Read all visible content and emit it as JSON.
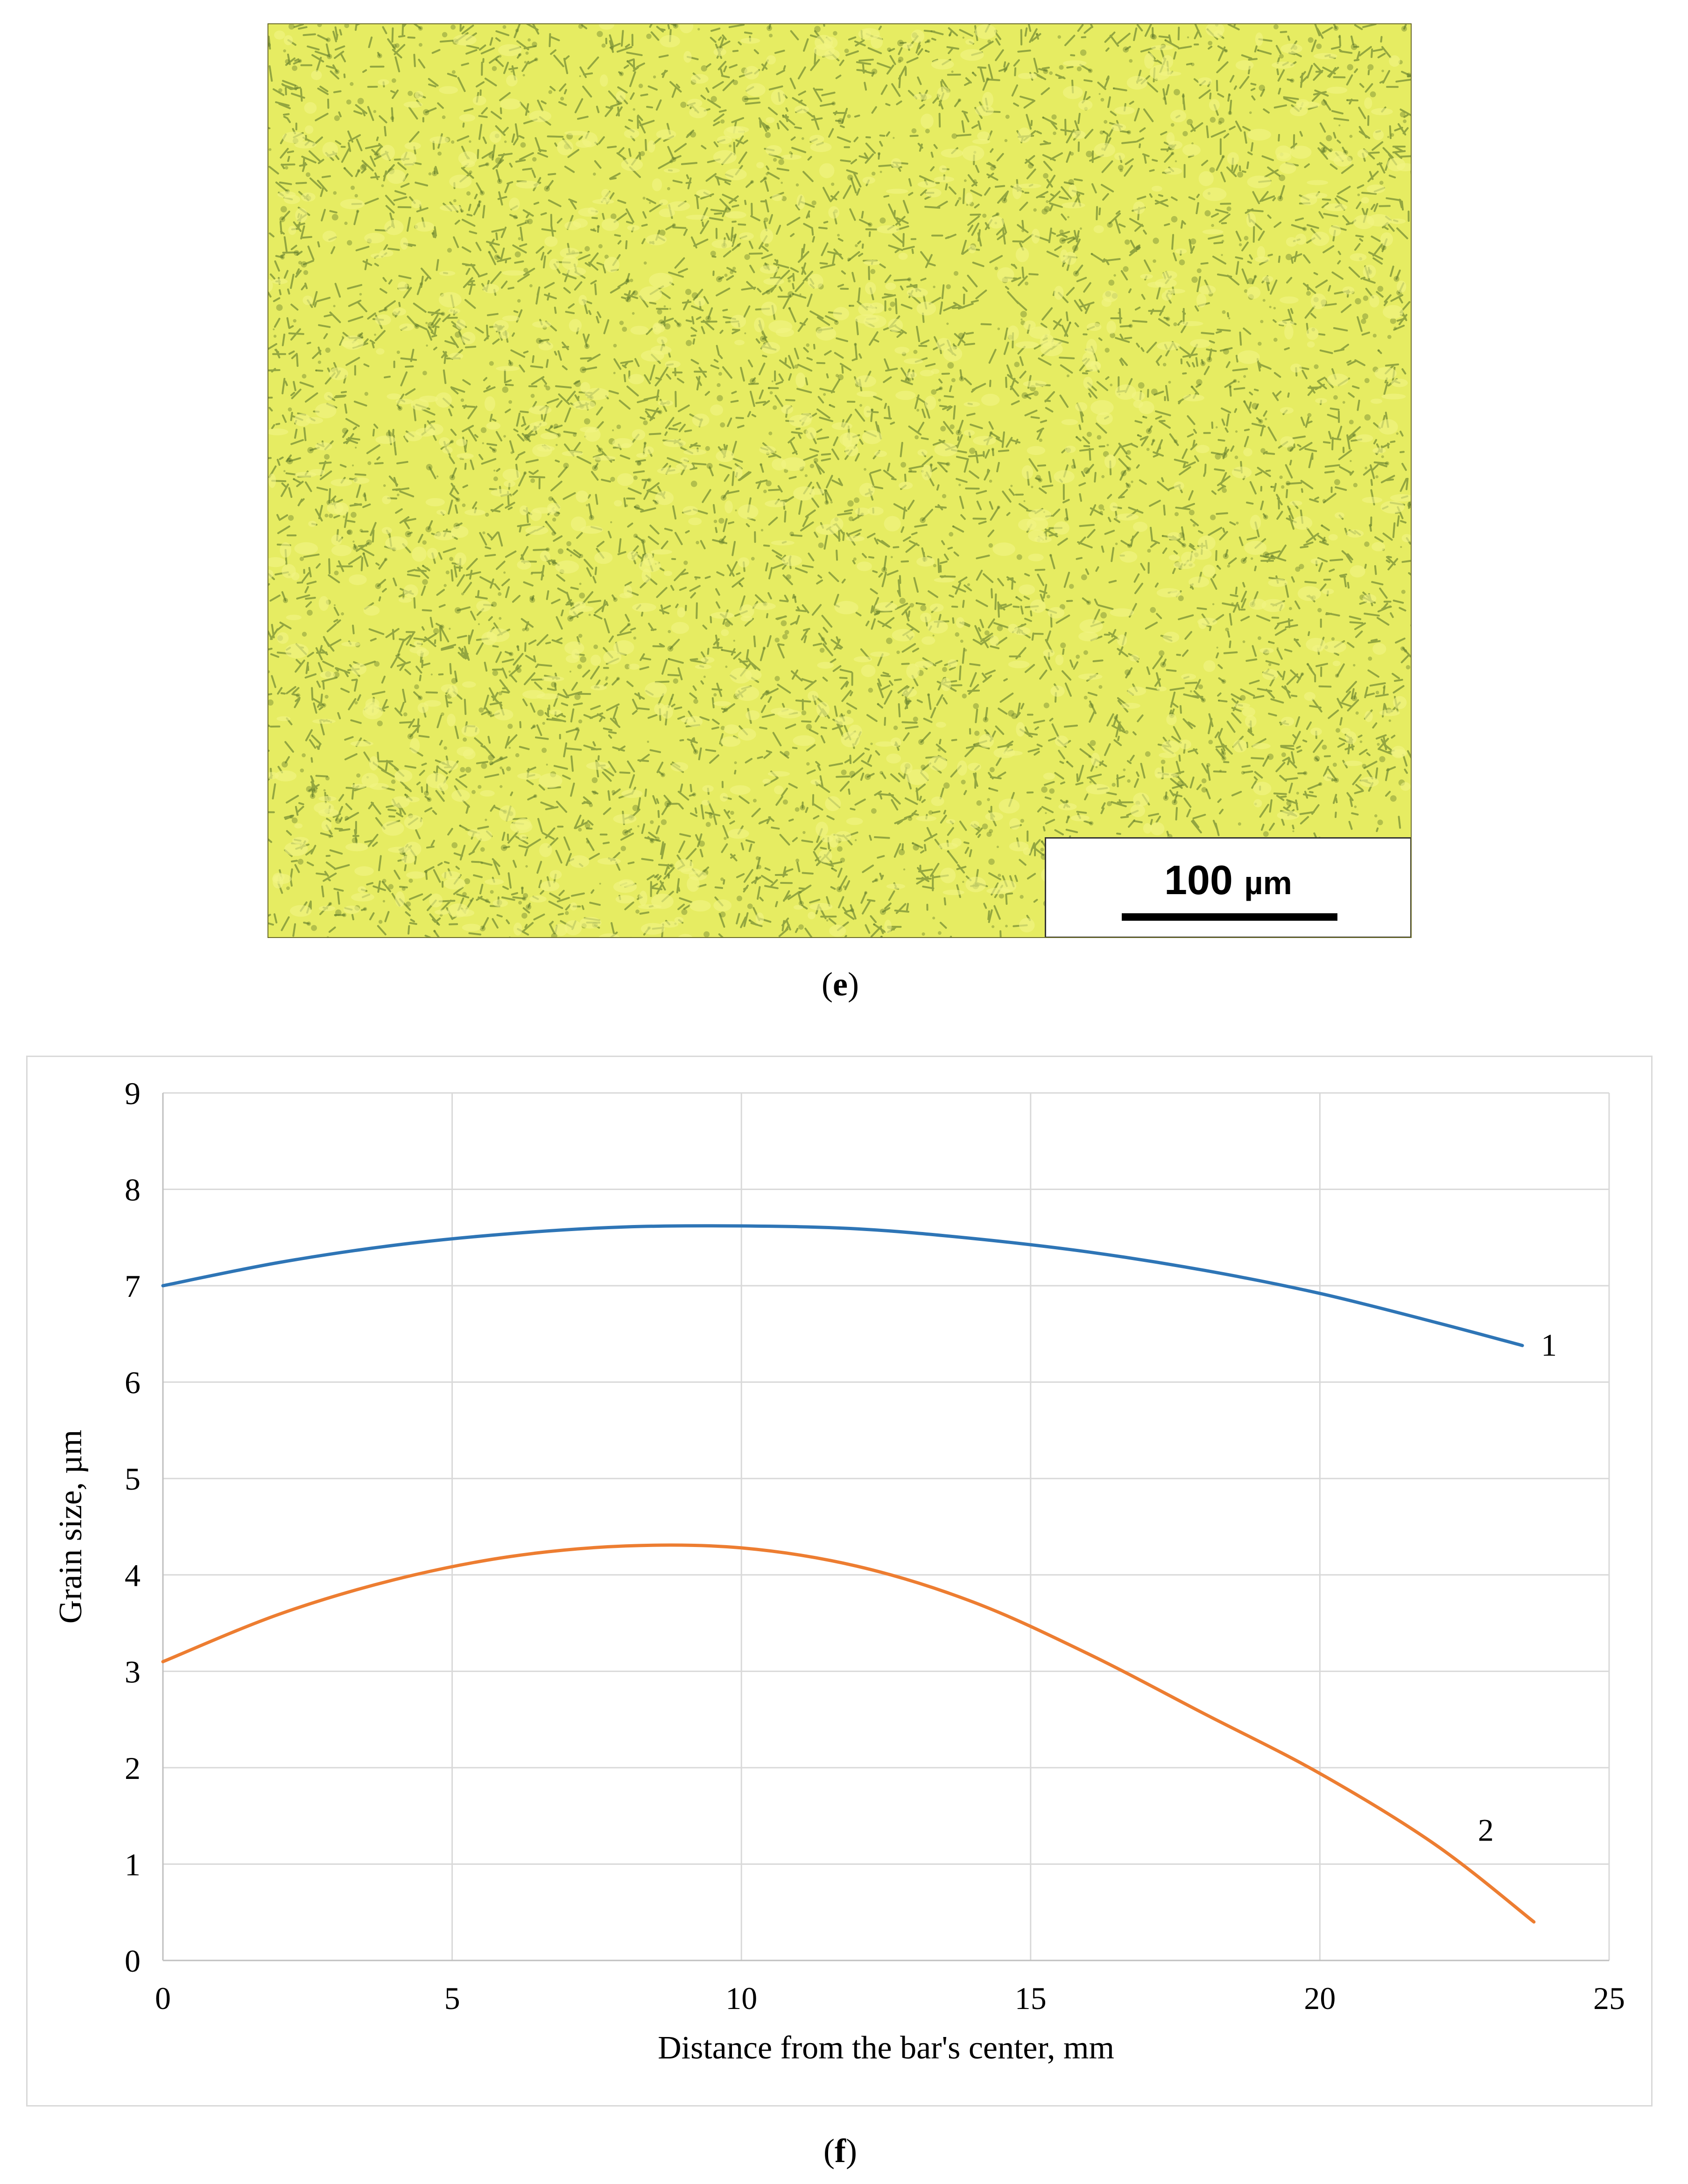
{
  "micrograph": {
    "scale_bar_value": "100",
    "scale_bar_unit": "µm",
    "colors": {
      "base": "#e6ec62",
      "boundary": "#4f6e24",
      "light": "#f2f585"
    }
  },
  "panel_labels": {
    "e": "e",
    "f": "f"
  },
  "chart_data": {
    "type": "line",
    "title": "",
    "xlabel": "Distance from the bar's center, mm",
    "ylabel": "Grain size, µm",
    "xlim": [
      0,
      25
    ],
    "ylim": [
      0,
      9
    ],
    "xticks": [
      "0",
      "5",
      "10",
      "15",
      "20",
      "25"
    ],
    "yticks": [
      "0",
      "1",
      "2",
      "3",
      "4",
      "5",
      "6",
      "7",
      "8",
      "9"
    ],
    "grid": true,
    "legend": "none",
    "series": [
      {
        "label": "1",
        "color": "#2e75b6",
        "x": [
          0,
          2,
          4,
          6,
          8,
          10,
          12,
          14,
          16,
          18,
          20,
          22,
          23.5
        ],
        "y": [
          7.0,
          7.24,
          7.42,
          7.54,
          7.61,
          7.62,
          7.59,
          7.49,
          7.35,
          7.16,
          6.92,
          6.62,
          6.38
        ]
      },
      {
        "label": "2",
        "color": "#ed7d31",
        "x": [
          0,
          2,
          4,
          6,
          8,
          10,
          12,
          14,
          16,
          18,
          20,
          22,
          23.7
        ],
        "y": [
          3.1,
          3.59,
          3.95,
          4.19,
          4.3,
          4.28,
          4.09,
          3.72,
          3.18,
          2.56,
          1.94,
          1.2,
          0.4
        ]
      }
    ]
  }
}
